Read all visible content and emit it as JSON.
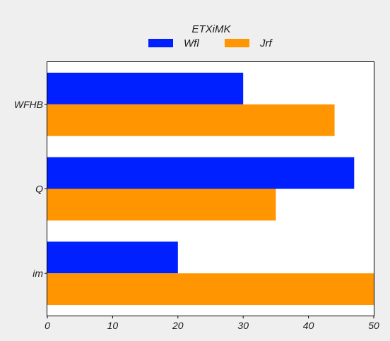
{
  "chart_data": {
    "type": "bar",
    "orientation": "horizontal",
    "title": "",
    "xlabel": "",
    "ylabel": "",
    "categories": [
      "WFHB",
      "Q",
      "im"
    ],
    "series": [
      {
        "name": "Wfl",
        "color": "#0020ff",
        "values": [
          30,
          47,
          20
        ]
      },
      {
        "name": "Jrf",
        "color": "#ff9500",
        "values": [
          44,
          35,
          50
        ]
      }
    ],
    "xlim": [
      0,
      50
    ],
    "xticks": [
      0,
      10,
      20,
      30,
      40,
      50
    ],
    "grid": false,
    "legend": {
      "title": "ETXiMK",
      "placement": "top-center"
    }
  },
  "colors": {
    "background": "#efefef",
    "plot_background": "#ffffff",
    "axis": "#000000"
  }
}
